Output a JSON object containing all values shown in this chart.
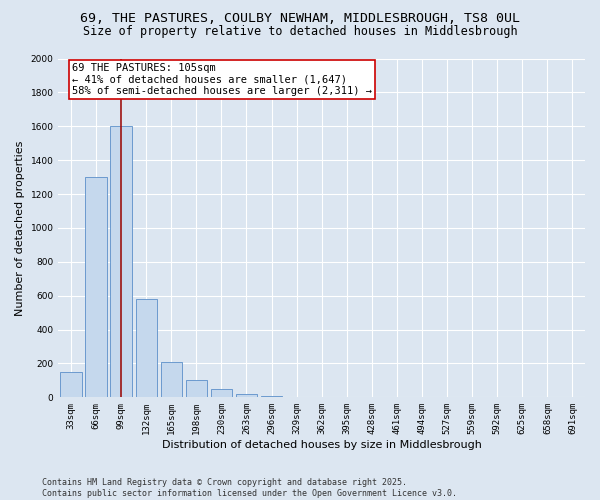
{
  "title_line1": "69, THE PASTURES, COULBY NEWHAM, MIDDLESBROUGH, TS8 0UL",
  "title_line2": "Size of property relative to detached houses in Middlesbrough",
  "xlabel": "Distribution of detached houses by size in Middlesbrough",
  "ylabel": "Number of detached properties",
  "categories": [
    "33sqm",
    "66sqm",
    "99sqm",
    "132sqm",
    "165sqm",
    "198sqm",
    "230sqm",
    "263sqm",
    "296sqm",
    "329sqm",
    "362sqm",
    "395sqm",
    "428sqm",
    "461sqm",
    "494sqm",
    "527sqm",
    "559sqm",
    "592sqm",
    "625sqm",
    "658sqm",
    "691sqm"
  ],
  "values": [
    150,
    1300,
    1600,
    580,
    210,
    100,
    50,
    20,
    10,
    0,
    0,
    0,
    0,
    0,
    0,
    0,
    0,
    0,
    0,
    0,
    0
  ],
  "bar_color": "#c5d8ed",
  "bar_edge_color": "#5b8fc9",
  "vline_x_index": 2,
  "vline_color": "#9b1111",
  "annotation_text": "69 THE PASTURES: 105sqm\n← 41% of detached houses are smaller (1,647)\n58% of semi-detached houses are larger (2,311) →",
  "annotation_box_facecolor": "#ffffff",
  "annotation_box_edgecolor": "#cc0000",
  "ylim": [
    0,
    2000
  ],
  "yticks": [
    0,
    200,
    400,
    600,
    800,
    1000,
    1200,
    1400,
    1600,
    1800,
    2000
  ],
  "plot_bg_color": "#dce6f1",
  "fig_bg_color": "#dce6f1",
  "footer_line1": "Contains HM Land Registry data © Crown copyright and database right 2025.",
  "footer_line2": "Contains public sector information licensed under the Open Government Licence v3.0.",
  "title_fontsize": 9.5,
  "subtitle_fontsize": 8.5,
  "axis_label_fontsize": 8,
  "tick_fontsize": 6.5,
  "footer_fontsize": 6,
  "annot_fontsize": 7.5
}
